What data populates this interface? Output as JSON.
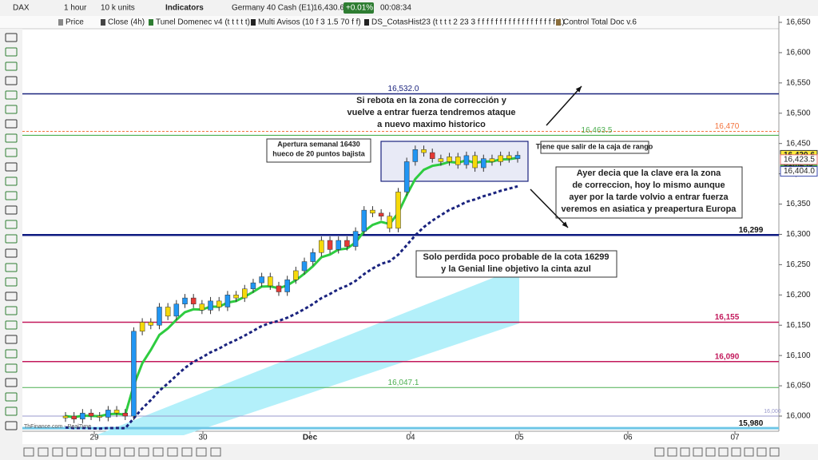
{
  "toolbar": {
    "symbol": "DAX",
    "timeframe": "1 hour",
    "units": "10 k units",
    "indicators": "Indicators",
    "instrument": "Germany 40 Cash (E1)",
    "price": "16,430.6",
    "change": "+0.01%",
    "timer": "00:08:34"
  },
  "legend": [
    "Price",
    "Close (4h)",
    "Tunel Domenec v4 (t t t t t)",
    "Multi Avisos (10 f 3 1.5 70 f f)",
    "DS_CotasHist23 (t t t t 2 23 3 f f f f f f f f f f f f f f f f f f 1)",
    "Control Total Doc v.6"
  ],
  "price_axis": [
    {
      "value": 16650,
      "label": "16,650"
    },
    {
      "value": 16600,
      "label": "16,600"
    },
    {
      "value": 16550,
      "label": "16,550"
    },
    {
      "value": 16500,
      "label": "16,500"
    },
    {
      "value": 16450,
      "label": "16,450"
    },
    {
      "value": 16400,
      "label": "16,400"
    },
    {
      "value": 16350,
      "label": "16,350"
    },
    {
      "value": 16300,
      "label": "16,300"
    },
    {
      "value": 16250,
      "label": "16,250"
    },
    {
      "value": 16200,
      "label": "16,200"
    },
    {
      "value": 16150,
      "label": "16,150"
    },
    {
      "value": 16100,
      "label": "16,100"
    },
    {
      "value": 16050,
      "label": "16,050"
    },
    {
      "value": 16000,
      "label": "16,000"
    }
  ],
  "time_axis": [
    "29",
    "30",
    "Dec",
    "04",
    "05",
    "06",
    "07"
  ],
  "levels": [
    {
      "value": 16532,
      "label": "16,532.0",
      "color": "#1a237e"
    },
    {
      "value": 16470,
      "label": "16,470",
      "color": "#f4733c"
    },
    {
      "value": 16463.5,
      "label": "16,463.5",
      "color": "#4caf50"
    },
    {
      "value": 16299,
      "label": "16,299",
      "color": "#0d1a80"
    },
    {
      "value": 16155,
      "label": "16,155",
      "color": "#c2185b"
    },
    {
      "value": 16090,
      "label": "16,090",
      "color": "#c2185b"
    },
    {
      "value": 16047.1,
      "label": "16,047.1",
      "color": "#4caf50"
    },
    {
      "value": 16000,
      "label": "16,000",
      "color": "#9999cc"
    },
    {
      "value": 15980,
      "label": "15,980",
      "color": "#6ec6e6"
    }
  ],
  "price_tags": [
    {
      "value": 16430.6,
      "label": "16,430.6"
    },
    {
      "label": "51m24s"
    },
    {
      "value": 16423.5,
      "label": "16,423.5"
    },
    {
      "value": 16404.0,
      "label": "16,404.0"
    }
  ],
  "closes": [
    16000,
    15995,
    16005,
    16000,
    15998,
    16010,
    16005,
    16000,
    16140,
    16155,
    16150,
    16180,
    16165,
    16185,
    16195,
    16185,
    16175,
    16190,
    16180,
    16200,
    16195,
    16210,
    16220,
    16230,
    16215,
    16205,
    16225,
    16240,
    16255,
    16270,
    16290,
    16275,
    16290,
    16280,
    16305,
    16340,
    16335,
    16330,
    16310,
    16370,
    16420,
    16440,
    16435,
    16425,
    16420,
    16428,
    16415,
    16430,
    16410,
    16425,
    16420,
    16430,
    16425,
    16430.6
  ],
  "notes": [
    [
      "Si rebota en la zona de corrección y",
      "vuelve a entrar fuerza tendremos ataque",
      "a nuevo maximo historico"
    ],
    [
      "Apertura semanal 16430",
      "hueco de 20 puntos bajista"
    ],
    [
      "Tiene que salir de la caja de rango"
    ],
    [
      "Ayer decia que la clave era la zona",
      "de correccion, hoy lo mismo aunque",
      "ayer por la tarde volvio a entrar fuerza",
      "veremos en asiatica y preapertura Europa"
    ],
    [
      "Solo perdida poco probable de la cota 16299",
      "y la Genial line objetivo la cinta azul"
    ]
  ],
  "source": "ThFinance.com - RealTime"
}
